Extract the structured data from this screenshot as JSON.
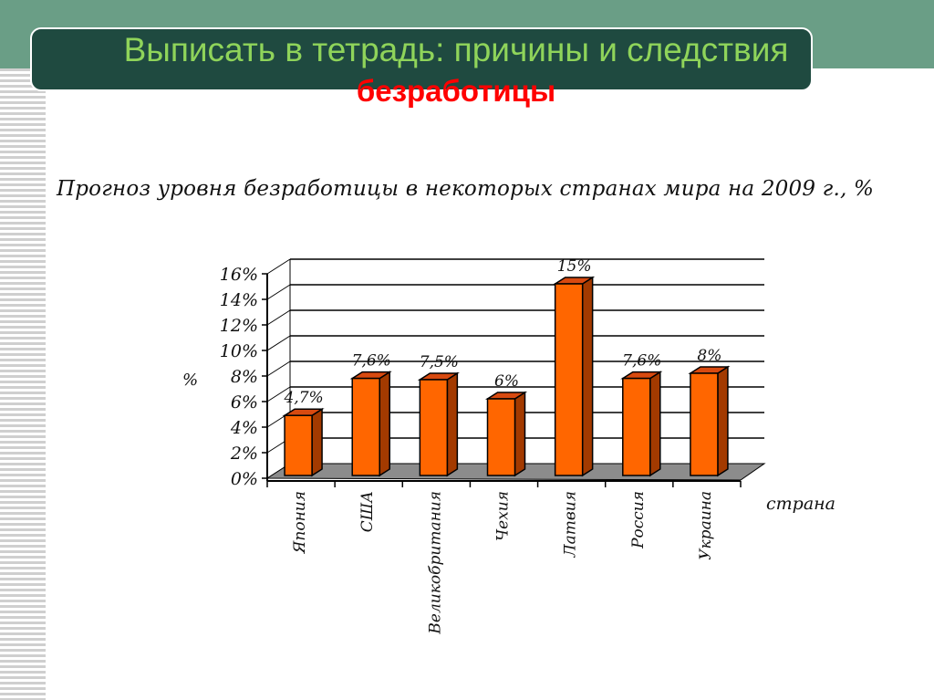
{
  "slide": {
    "title_line1": "Выписать в тетрадь: причины и следствия",
    "title_line2": "безработицы",
    "colors": {
      "band": "#6a9e86",
      "title_box": "#1f4a40",
      "title_text": "#8fd45a",
      "title_accent": "#ff0000",
      "bar_front": "#ff6600",
      "bar_side": "#a33a00",
      "bar_top": "#d84a10",
      "floor": "#8c8c8c"
    }
  },
  "chart_data": {
    "type": "bar",
    "title": "Прогноз уровня безработицы в некоторых странах мира на 2009 г.,  %",
    "xlabel": "страна",
    "ylabel": "%",
    "categories": [
      "Япония",
      "США",
      "Великобритания",
      "Чехия",
      "Латвия",
      "Россия",
      "Украина"
    ],
    "values": [
      4.7,
      7.6,
      7.5,
      6,
      15,
      7.6,
      8
    ],
    "data_labels": [
      "4,7%",
      "7,6%",
      "7,5%",
      "6%",
      "15%",
      "7,6%",
      "8%"
    ],
    "yticks": [
      "0%",
      "2%",
      "4%",
      "6%",
      "8%",
      "10%",
      "12%",
      "14%",
      "16%"
    ],
    "ylim": [
      0,
      16
    ],
    "grid": true,
    "style": "3d-column",
    "legend": "none"
  }
}
